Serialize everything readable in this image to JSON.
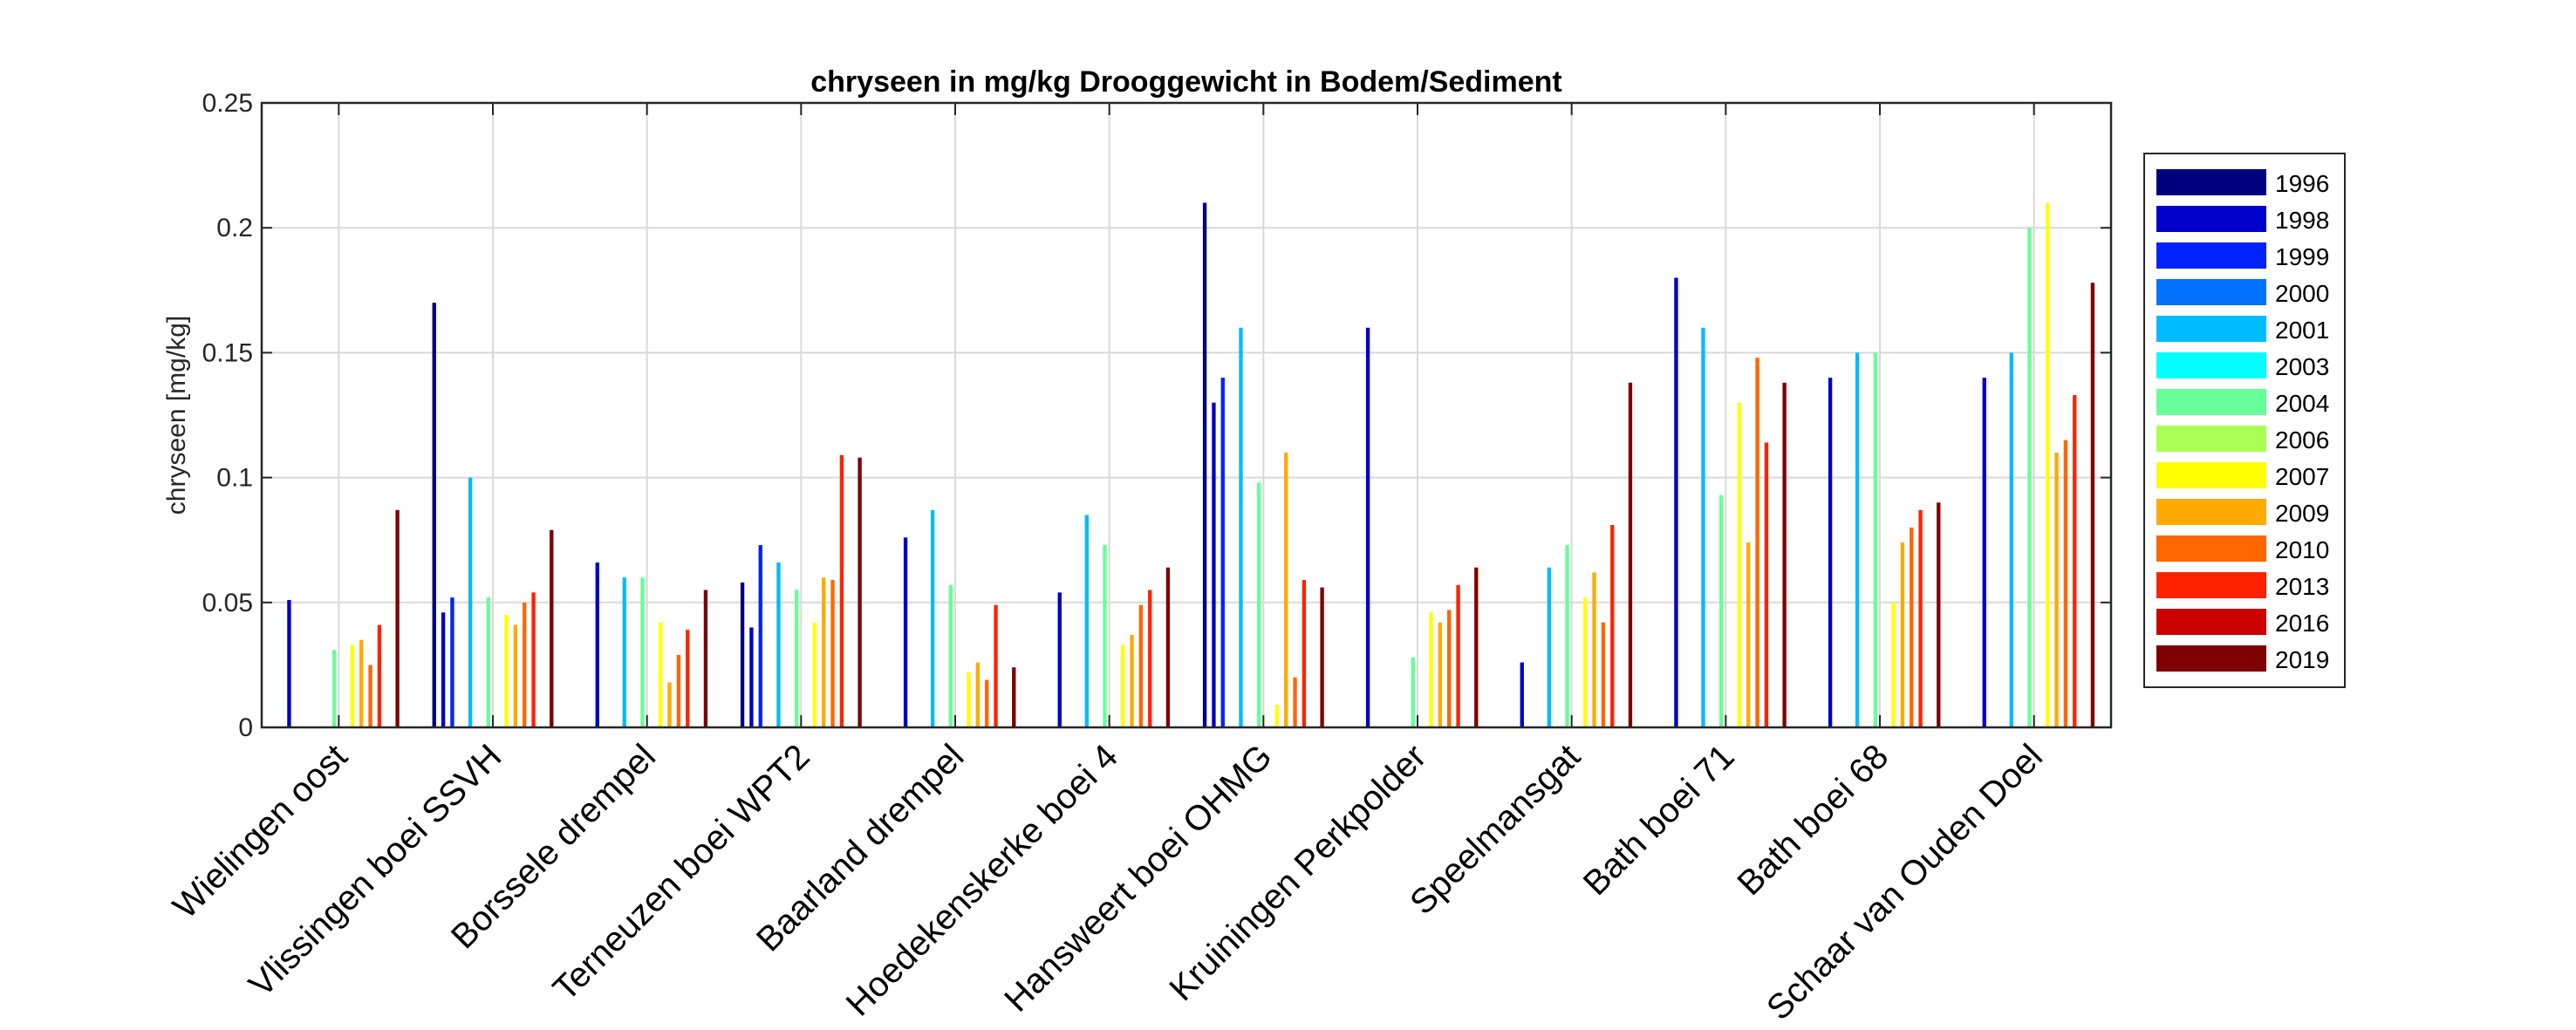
{
  "chart_data": {
    "type": "bar",
    "title": "chryseen in mg/kg Drooggewicht in Bodem/Sediment",
    "xlabel": "",
    "ylabel": "chryseen [mg/kg]",
    "ylim": [
      0,
      0.25
    ],
    "yticks": [
      0,
      0.05,
      0.1,
      0.15,
      0.2,
      0.25
    ],
    "ytick_labels": [
      "0",
      "0.05",
      "0.1",
      "0.15",
      "0.2",
      "0.25"
    ],
    "grid": true,
    "legend_position": "right-outside",
    "categories": [
      "Wielingen oost",
      "Vlissingen boei SSVH",
      "Borssele drempel",
      "Terneuzen boei WPT2",
      "Baarland drempel",
      "Hoedekenskerke boei 4",
      "Hansweert boei OHMG",
      "Kruiningen Perkpolder",
      "Speelmansgat",
      "Bath boei 71",
      "Bath boei 68",
      "Schaar van Ouden Doel"
    ],
    "series": [
      {
        "name": "1996",
        "color": "#00007f",
        "values": [
          null,
          0.17,
          null,
          0.058,
          null,
          null,
          0.21,
          null,
          null,
          null,
          null,
          null
        ]
      },
      {
        "name": "1998",
        "color": "#0000cc",
        "values": [
          0.051,
          0.046,
          0.066,
          0.04,
          0.076,
          0.054,
          0.13,
          0.16,
          0.026,
          0.18,
          0.14,
          0.14
        ]
      },
      {
        "name": "1999",
        "color": "#0022ff",
        "values": [
          null,
          0.052,
          null,
          0.073,
          null,
          null,
          0.14,
          null,
          null,
          null,
          null,
          null
        ]
      },
      {
        "name": "2000",
        "color": "#0072ff",
        "values": [
          null,
          null,
          null,
          null,
          null,
          null,
          null,
          null,
          null,
          null,
          null,
          null
        ]
      },
      {
        "name": "2001",
        "color": "#00bbff",
        "values": [
          null,
          0.1,
          0.06,
          0.066,
          0.087,
          0.085,
          0.16,
          null,
          0.064,
          0.16,
          0.15,
          0.15
        ]
      },
      {
        "name": "2003",
        "color": "#00ffff",
        "values": [
          null,
          null,
          null,
          null,
          null,
          null,
          null,
          null,
          null,
          null,
          null,
          null
        ]
      },
      {
        "name": "2004",
        "color": "#66ff99",
        "values": [
          0.031,
          0.052,
          0.06,
          0.055,
          0.057,
          0.073,
          0.098,
          0.028,
          0.073,
          0.093,
          0.15,
          0.2
        ]
      },
      {
        "name": "2006",
        "color": "#aaff55",
        "values": [
          null,
          null,
          null,
          null,
          null,
          null,
          null,
          null,
          null,
          null,
          null,
          null
        ]
      },
      {
        "name": "2007",
        "color": "#ffff00",
        "values": [
          0.033,
          0.045,
          0.042,
          0.042,
          0.022,
          0.033,
          0.009,
          0.046,
          0.052,
          0.13,
          0.05,
          0.21
        ]
      },
      {
        "name": "2009",
        "color": "#ffaa00",
        "values": [
          0.035,
          0.041,
          0.018,
          0.06,
          0.026,
          0.037,
          0.11,
          0.042,
          0.062,
          0.074,
          0.074,
          0.11
        ]
      },
      {
        "name": "2010",
        "color": "#ff6600",
        "values": [
          0.025,
          0.05,
          0.029,
          0.059,
          0.019,
          0.049,
          0.02,
          0.047,
          0.042,
          0.148,
          0.08,
          0.115
        ]
      },
      {
        "name": "2013",
        "color": "#ff2200",
        "values": [
          0.041,
          0.054,
          0.039,
          0.109,
          0.049,
          0.055,
          0.059,
          0.057,
          0.081,
          0.114,
          0.087,
          0.133
        ]
      },
      {
        "name": "2016",
        "color": "#cc0000",
        "values": [
          null,
          null,
          null,
          null,
          null,
          null,
          null,
          null,
          null,
          null,
          null,
          null
        ]
      },
      {
        "name": "2019",
        "color": "#7f0000",
        "values": [
          0.087,
          0.079,
          0.055,
          0.108,
          0.024,
          0.064,
          0.056,
          0.064,
          0.138,
          0.138,
          0.09,
          0.178
        ]
      }
    ]
  }
}
